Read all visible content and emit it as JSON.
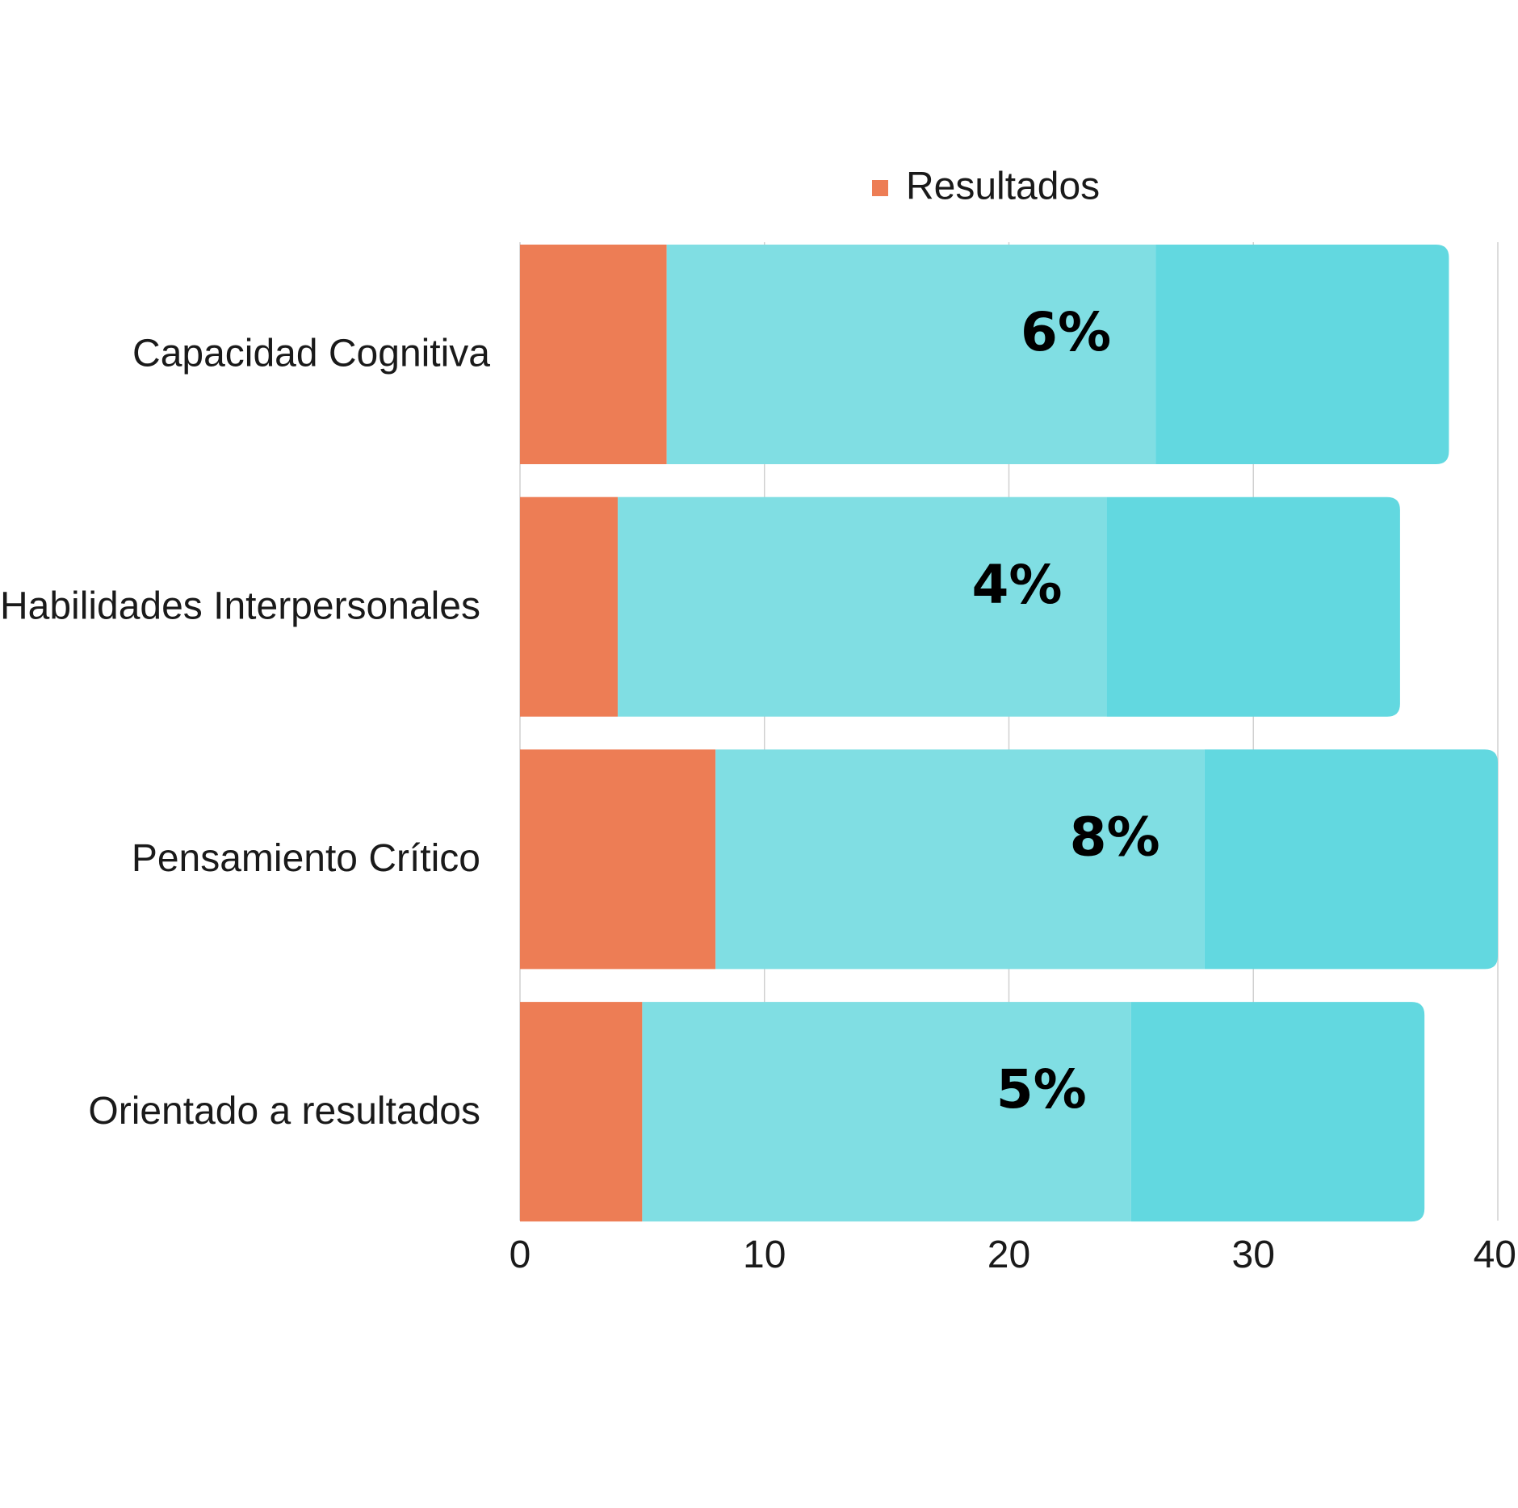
{
  "chart_data": {
    "type": "bar",
    "orientation": "horizontal",
    "stacked": true,
    "categories": [
      "Capacidad  Cognitiva",
      "Habilidades Interpersonales",
      "Pensamiento Crítico",
      "Orientado a resultados"
    ],
    "series": [
      {
        "name": "Resultados",
        "values": [
          6,
          4,
          8,
          5
        ],
        "color": "#ED7D55",
        "in_legend": true
      },
      {
        "values": [
          20,
          20,
          20,
          20
        ],
        "color": "#80DEE3",
        "in_legend": false
      },
      {
        "values": [
          12,
          12,
          12,
          12
        ],
        "color": "#62D8E0",
        "in_legend": false
      }
    ],
    "data_labels": [
      "6%",
      "4%",
      "8%",
      "5%"
    ],
    "x_ticks": [
      "0",
      "10",
      "20",
      "30",
      "40"
    ],
    "xlim": [
      0,
      40
    ],
    "grid": "vertical",
    "legend_position": "top"
  }
}
